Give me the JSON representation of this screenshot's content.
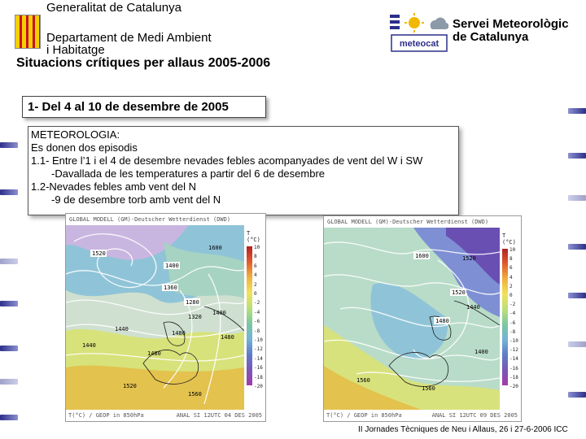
{
  "header": {
    "org_line1": "Generalitat de Catalunya",
    "org_line2": "Departament de Medi Ambient",
    "org_line3": "i Habitatge",
    "title": "Situacions crítiques per allaus 2005-2006",
    "brand_logo_text": "meteocat",
    "service_line1": "Servei Meteorològic",
    "service_line2": "de Catalunya"
  },
  "section": {
    "title": "1- Del 4 al 10 de desembre de 2005"
  },
  "meteo": {
    "heading": "METEOROLOGIA:",
    "lines": [
      "Es donen dos episodis",
      "1.1- Entre l’1 i el 4 de desembre nevades febles acompanyades de vent del W i SW",
      "-Davallada de les temperatures a partir del 6 de desembre",
      "1.2-Nevades febles amb vent del N",
      "-9 de desembre torb amb vent del N"
    ]
  },
  "maps": [
    {
      "header": "GLOBAL MODELL (GM)-Deutscher Wetterdienst (DWD)",
      "legend_title": "T (°C)",
      "footer_left": "T(°C) / GEOP in 850hPa",
      "footer_right": "ANAL SI 12UTC 04 DES 2005",
      "labels": [
        "1520",
        "1400",
        "1360",
        "1280",
        "1320",
        "1440",
        "1480",
        "1400",
        "1480",
        "1440",
        "1520",
        "1560",
        "1480",
        "1600"
      ]
    },
    {
      "header": "GLOBAL MODELL (GM)-Deutscher Wetterdienst (DWD)",
      "legend_title": "T (°C)",
      "footer_left": "T(°C) / GEOP in 850hPa",
      "footer_right": "ANAL SI 12UTC 09 DES 2005",
      "labels": [
        "1600",
        "1520",
        "1480",
        "1440",
        "1400",
        "1560",
        "1520",
        "1560"
      ]
    }
  ],
  "legend_ticks": [
    "10",
    "8",
    "6",
    "4",
    "2",
    "0",
    "-2",
    "-4",
    "-6",
    "-8",
    "-10",
    "-12",
    "-14",
    "-16",
    "-18",
    "-20"
  ],
  "footer": {
    "note": "II Jornades Tècniques de Neu i Allaus, 26 i 27-6-2006 ICC"
  }
}
